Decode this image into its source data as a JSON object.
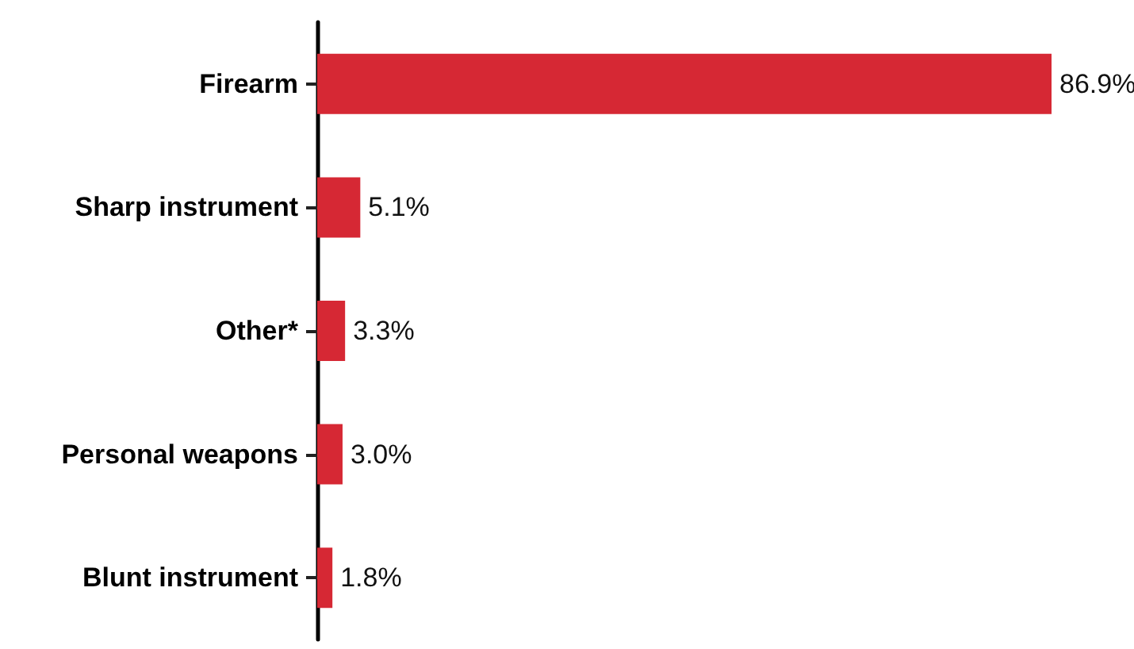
{
  "chart_data": {
    "type": "bar",
    "orientation": "horizontal",
    "categories": [
      "Firearm",
      "Sharp instrument",
      "Other*",
      "Personal weapons",
      "Blunt instrument"
    ],
    "values": [
      86.9,
      5.1,
      3.3,
      3.0,
      1.8
    ],
    "value_labels": [
      "86.9%",
      "5.1%",
      "3.3%",
      "3.0%",
      "1.8%"
    ],
    "color": "#d62834"
  }
}
